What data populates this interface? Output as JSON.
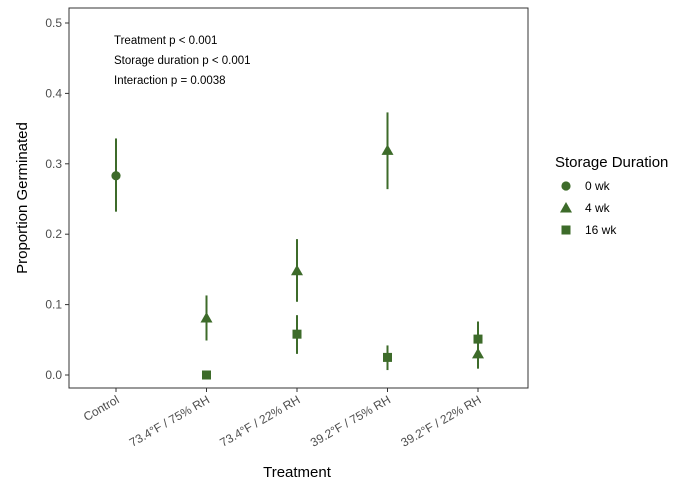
{
  "chart_data": {
    "type": "scatter",
    "xlabel": "Treatment",
    "ylabel": "Proportion Germinated",
    "ylim": [
      0,
      0.5
    ],
    "yticks": [
      "0.0",
      "0.1",
      "0.2",
      "0.3",
      "0.4",
      "0.5"
    ],
    "categories": [
      "Control",
      "73.4°F / 75% RH",
      "73.4°F / 22% RH",
      "39.2°F / 75% RH",
      "39.2°F / 22% RH"
    ],
    "grid": false,
    "color": "#3d6b2a",
    "annotations": [
      "Treatment p < 0.001",
      "Storage duration p < 0.001",
      "Interaction p = 0.0038"
    ],
    "legend": {
      "title": "Storage Duration",
      "placement": "right"
    },
    "series": [
      {
        "name": "0 wk",
        "marker": "circle",
        "points": [
          {
            "category": "Control",
            "y": 0.283,
            "lo": 0.232,
            "hi": 0.336
          }
        ]
      },
      {
        "name": "4 wk",
        "marker": "triangle",
        "points": [
          {
            "category": "73.4°F / 75% RH",
            "y": 0.081,
            "lo": 0.049,
            "hi": 0.113
          },
          {
            "category": "73.4°F / 22% RH",
            "y": 0.148,
            "lo": 0.104,
            "hi": 0.193
          },
          {
            "category": "39.2°F / 75% RH",
            "y": 0.319,
            "lo": 0.264,
            "hi": 0.373
          },
          {
            "category": "39.2°F / 22% RH",
            "y": 0.03,
            "lo": 0.009,
            "hi": 0.05
          }
        ]
      },
      {
        "name": "16 wk",
        "marker": "square",
        "points": [
          {
            "category": "73.4°F / 75% RH",
            "y": 0.0,
            "lo": 0.0,
            "hi": 0.0
          },
          {
            "category": "73.4°F / 22% RH",
            "y": 0.058,
            "lo": 0.03,
            "hi": 0.085
          },
          {
            "category": "39.2°F / 75% RH",
            "y": 0.025,
            "lo": 0.007,
            "hi": 0.042
          },
          {
            "category": "39.2°F / 22% RH",
            "y": 0.051,
            "lo": 0.026,
            "hi": 0.076
          }
        ]
      }
    ]
  }
}
